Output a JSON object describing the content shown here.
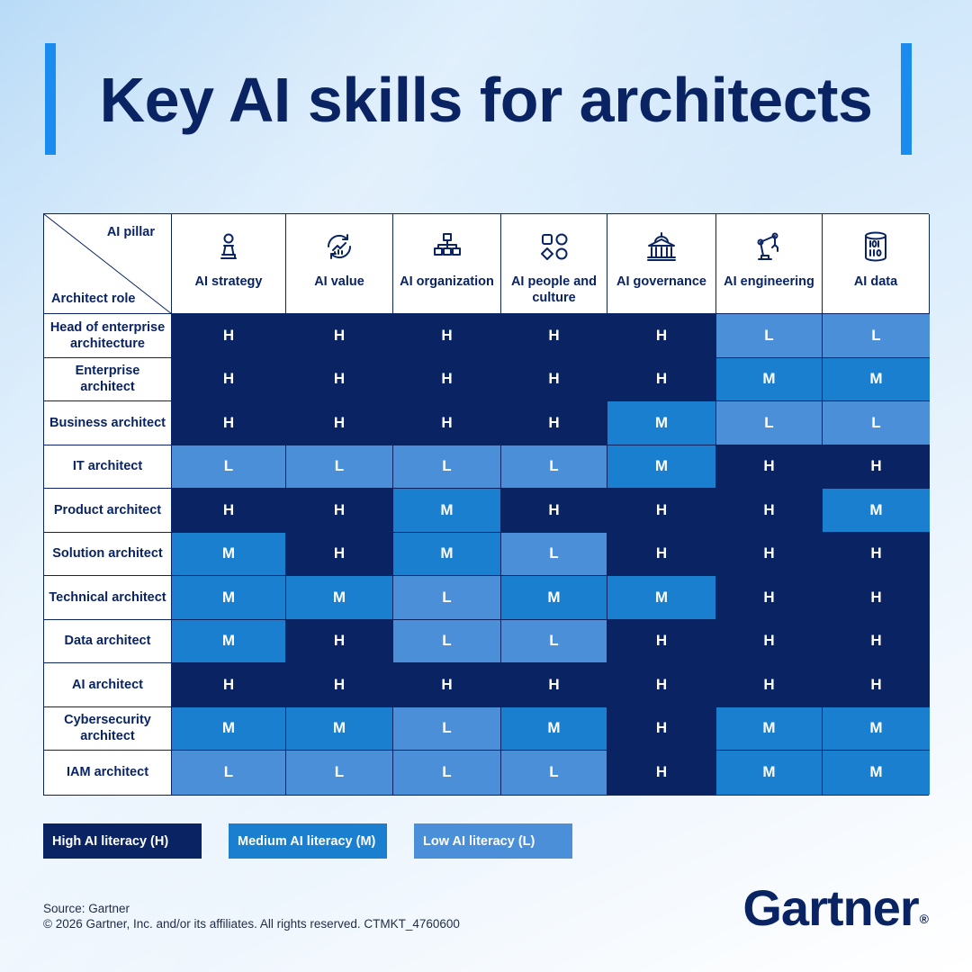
{
  "title": "Key AI skills for architects",
  "corner": {
    "top_label": "AI pillar",
    "bottom_label": "Architect role"
  },
  "columns": [
    {
      "label": "AI strategy",
      "icon": "chess-pawn-icon"
    },
    {
      "label": "AI value",
      "icon": "growth-cycle-icon"
    },
    {
      "label": "AI organization",
      "icon": "org-chart-icon"
    },
    {
      "label": "AI people and culture",
      "icon": "shapes-icon"
    },
    {
      "label": "AI governance",
      "icon": "government-building-icon"
    },
    {
      "label": "AI engineering",
      "icon": "robotic-arm-icon"
    },
    {
      "label": "AI data",
      "icon": "binary-data-icon"
    }
  ],
  "chart_data": {
    "type": "table",
    "columns": [
      "AI strategy",
      "AI value",
      "AI organization",
      "AI people and culture",
      "AI governance",
      "AI engineering",
      "AI data"
    ],
    "rows": [
      {
        "role": "Head of enterprise architecture",
        "values": [
          "H",
          "H",
          "H",
          "H",
          "H",
          "L",
          "L"
        ]
      },
      {
        "role": "Enterprise architect",
        "values": [
          "H",
          "H",
          "H",
          "H",
          "H",
          "M",
          "M"
        ]
      },
      {
        "role": "Business architect",
        "values": [
          "H",
          "H",
          "H",
          "H",
          "M",
          "L",
          "L"
        ]
      },
      {
        "role": "IT architect",
        "values": [
          "L",
          "L",
          "L",
          "L",
          "M",
          "H",
          "H"
        ]
      },
      {
        "role": "Product architect",
        "values": [
          "H",
          "H",
          "M",
          "H",
          "H",
          "H",
          "M"
        ]
      },
      {
        "role": "Solution architect",
        "values": [
          "M",
          "H",
          "M",
          "L",
          "H",
          "H",
          "H"
        ]
      },
      {
        "role": "Technical architect",
        "values": [
          "M",
          "M",
          "L",
          "M",
          "M",
          "H",
          "H"
        ]
      },
      {
        "role": "Data architect",
        "values": [
          "M",
          "H",
          "L",
          "L",
          "H",
          "H",
          "H"
        ]
      },
      {
        "role": "AI architect",
        "values": [
          "H",
          "H",
          "H",
          "H",
          "H",
          "H",
          "H"
        ]
      },
      {
        "role": "Cybersecurity architect",
        "values": [
          "M",
          "M",
          "L",
          "M",
          "H",
          "M",
          "M"
        ]
      },
      {
        "role": "IAM architect",
        "values": [
          "L",
          "L",
          "L",
          "L",
          "H",
          "M",
          "M"
        ]
      }
    ],
    "colors": {
      "H": "#0a2463",
      "M": "#1b7fd0",
      "L": "#4b8fd8"
    }
  },
  "legend": {
    "high": "High AI literacy (H)",
    "medium": "Medium AI literacy (M)",
    "low": "Low AI literacy (L)"
  },
  "footer": {
    "source": "Source: Gartner",
    "copyright": "© 2026 Gartner, Inc. and/or its affiliates. All rights reserved. CTMKT_4760600"
  },
  "logo": {
    "text": "Gartner",
    "mark": "®"
  },
  "colors": {
    "accent_bar": "#1a8cf0",
    "navy": "#0a2463"
  }
}
